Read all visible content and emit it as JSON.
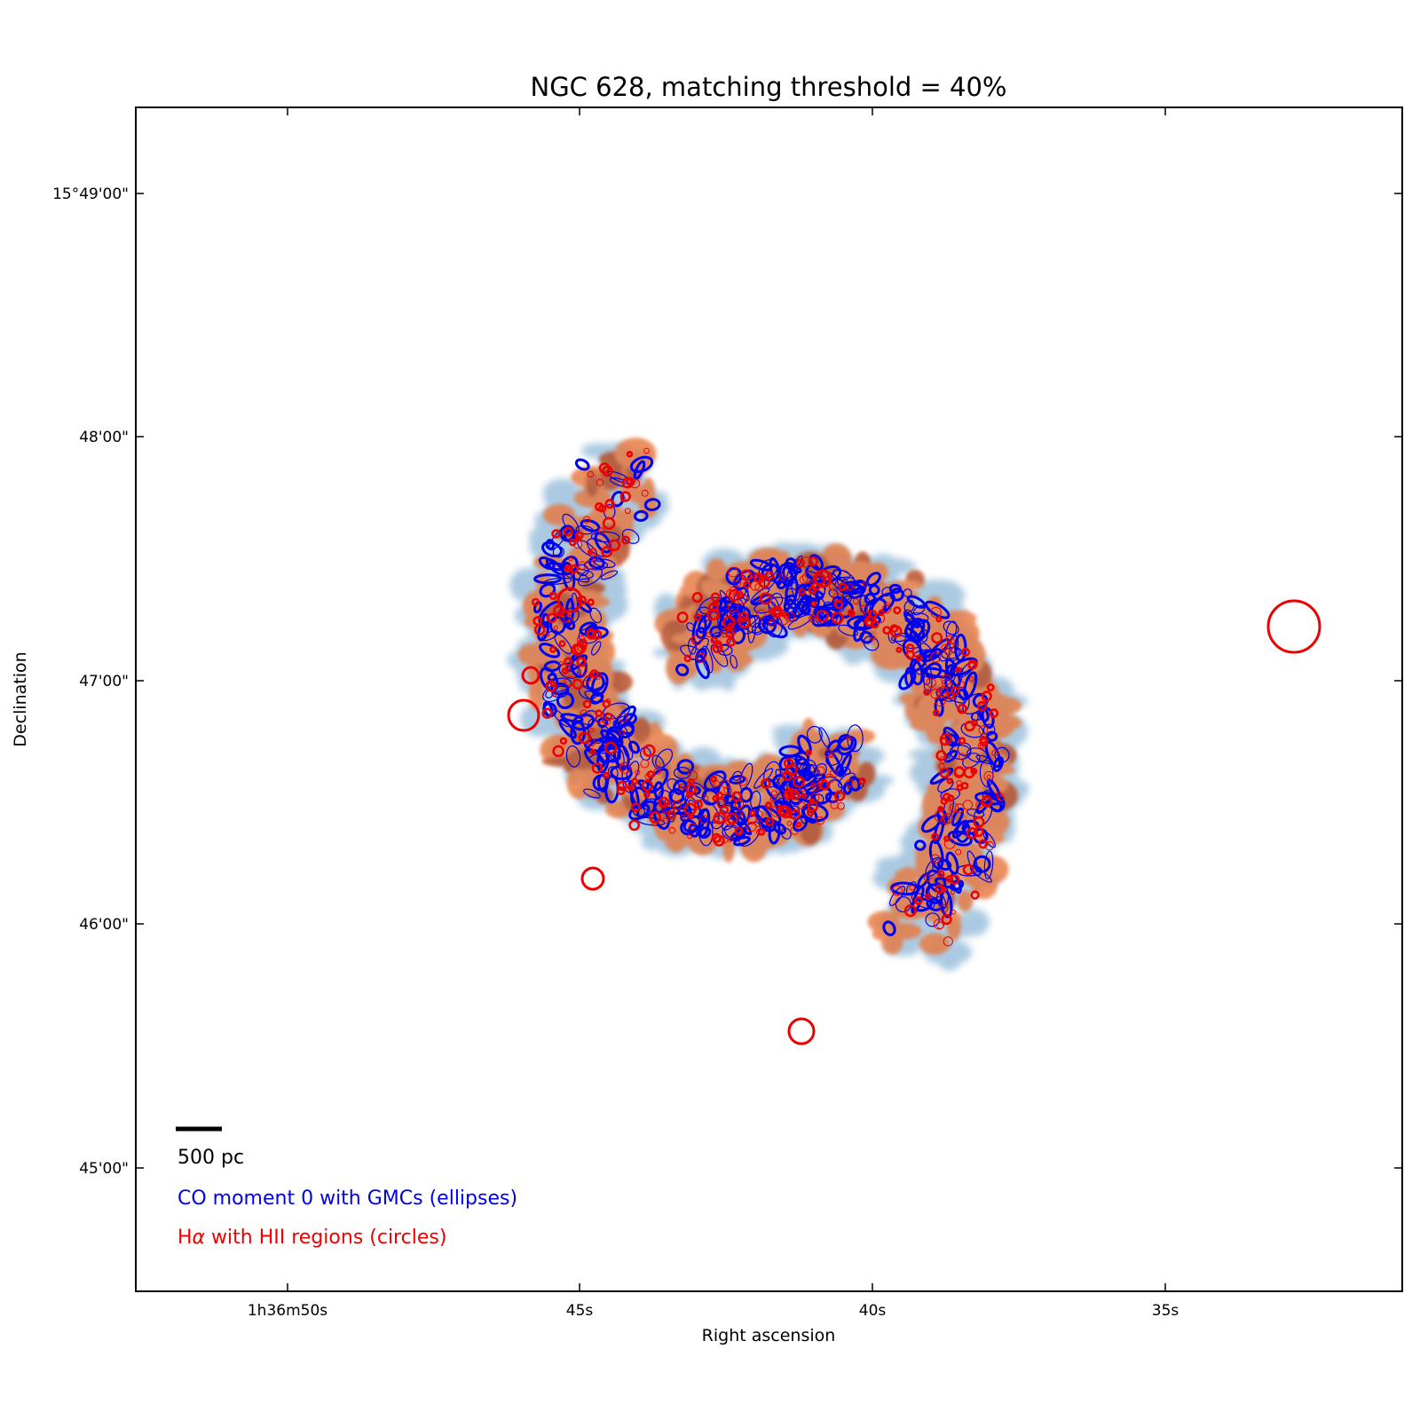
{
  "figure": {
    "title": "NGC 628, matching threshold = 40%",
    "xlabel": "Right ascension",
    "ylabel": "Declination",
    "x_ticks": [
      "1h36m50s",
      "45s",
      "40s",
      "35s"
    ],
    "y_ticks": [
      "15°49'00\"",
      "48'00\"",
      "47'00\"",
      "46'00\""
    ],
    "y_tick_bottom": "45'00\"",
    "scalebar_label": "500 pc",
    "legend_co": "CO moment 0 with GMCs (ellipses)",
    "legend_ha_prefix": "H",
    "legend_ha_symbol": "α",
    "legend_ha_suffix": " with HII regions (circles)"
  },
  "colors": {
    "co_map": "#8fb8d8",
    "ha_map": "#e8763a",
    "gmc_ellipse": "#0000ee",
    "hii_circle": "#ee0000"
  }
}
